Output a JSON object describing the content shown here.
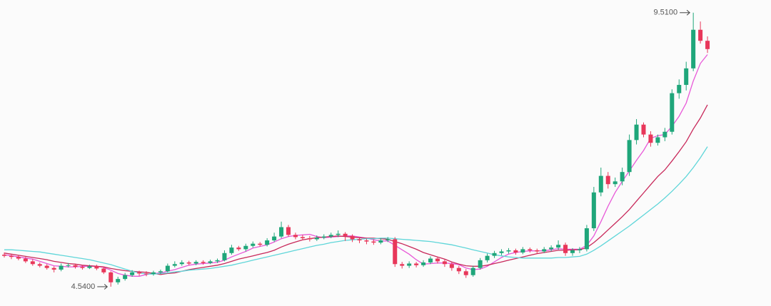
{
  "chart_data": {
    "type": "candlestick",
    "up_color": "#1fa67a",
    "down_color": "#e8375a",
    "ylim": [
      4.19,
      9.74
    ],
    "open": [
      5.12,
      5.1,
      5.08,
      5.05,
      5.0,
      4.95,
      4.92,
      4.88,
      4.85,
      4.92,
      4.93,
      4.9,
      4.88,
      4.91,
      4.87,
      4.8,
      4.62,
      4.68,
      4.75,
      4.8,
      4.78,
      4.77,
      4.8,
      4.82,
      4.92,
      4.95,
      4.98,
      4.96,
      4.99,
      4.97,
      5.0,
      5.02,
      5.15,
      5.25,
      5.22,
      5.28,
      5.32,
      5.3,
      5.38,
      5.45,
      5.62,
      5.48,
      5.44,
      5.42,
      5.4,
      5.43,
      5.45,
      5.48,
      5.5,
      5.46,
      5.4,
      5.38,
      5.36,
      5.34,
      5.38,
      5.4,
      4.95,
      4.92,
      4.96,
      4.93,
      4.98,
      5.05,
      5.0,
      4.95,
      4.88,
      4.82,
      4.75,
      4.88,
      5.02,
      5.1,
      5.15,
      5.18,
      5.2,
      5.16,
      5.22,
      5.2,
      5.18,
      5.22,
      5.25,
      5.3,
      5.15,
      5.2,
      5.22,
      5.6,
      6.25,
      6.55,
      6.4,
      6.45,
      6.62,
      7.2,
      7.48,
      7.3,
      7.15,
      7.25,
      7.35,
      8.05,
      8.2,
      8.5,
      9.2,
      9.0
    ],
    "high": [
      5.16,
      5.13,
      5.11,
      5.08,
      5.04,
      4.98,
      4.95,
      4.91,
      4.96,
      4.97,
      4.96,
      4.93,
      4.94,
      4.94,
      4.9,
      4.82,
      4.72,
      4.79,
      4.84,
      4.83,
      4.82,
      4.83,
      4.85,
      4.96,
      5.0,
      5.02,
      5.01,
      5.02,
      5.02,
      5.03,
      5.05,
      5.2,
      5.3,
      5.28,
      5.32,
      5.36,
      5.35,
      5.42,
      5.52,
      5.72,
      5.66,
      5.52,
      5.48,
      5.46,
      5.47,
      5.49,
      5.52,
      5.56,
      5.53,
      5.49,
      5.43,
      5.41,
      5.4,
      5.42,
      5.44,
      5.44,
      4.99,
      5.0,
      4.99,
      5.02,
      5.09,
      5.08,
      5.03,
      4.98,
      4.92,
      4.86,
      4.92,
      5.06,
      5.14,
      5.19,
      5.22,
      5.24,
      5.23,
      5.26,
      5.25,
      5.23,
      5.26,
      5.29,
      5.38,
      5.34,
      5.24,
      5.26,
      5.66,
      6.35,
      6.7,
      6.62,
      6.52,
      6.7,
      7.3,
      7.58,
      7.52,
      7.36,
      7.3,
      7.42,
      8.12,
      8.3,
      8.62,
      9.51,
      9.35,
      9.08
    ],
    "low": [
      5.07,
      5.04,
      5.02,
      4.97,
      4.92,
      4.89,
      4.85,
      4.8,
      4.82,
      4.89,
      4.87,
      4.85,
      4.86,
      4.84,
      4.77,
      4.54,
      4.58,
      4.65,
      4.72,
      4.74,
      4.73,
      4.74,
      4.77,
      4.8,
      4.89,
      4.92,
      4.93,
      4.93,
      4.94,
      4.95,
      4.97,
      5.0,
      5.12,
      5.19,
      5.18,
      5.25,
      5.27,
      5.27,
      5.35,
      5.42,
      5.45,
      5.4,
      5.38,
      5.36,
      5.37,
      5.4,
      5.42,
      5.44,
      5.37,
      5.35,
      5.33,
      5.31,
      5.3,
      5.31,
      5.35,
      4.9,
      4.87,
      4.88,
      4.89,
      4.9,
      4.95,
      4.96,
      4.9,
      4.83,
      4.77,
      4.7,
      4.72,
      4.85,
      4.98,
      5.06,
      5.11,
      5.14,
      5.12,
      5.13,
      5.16,
      5.14,
      5.15,
      5.18,
      5.21,
      5.1,
      5.1,
      5.15,
      5.18,
      5.55,
      6.18,
      6.32,
      6.35,
      6.38,
      6.55,
      7.12,
      7.25,
      7.08,
      7.1,
      7.18,
      7.3,
      7.95,
      8.1,
      8.45,
      8.95,
      8.78
    ],
    "close": [
      5.1,
      5.08,
      5.05,
      5.0,
      4.95,
      4.92,
      4.88,
      4.85,
      4.92,
      4.93,
      4.9,
      4.88,
      4.91,
      4.87,
      4.8,
      4.62,
      4.68,
      4.75,
      4.8,
      4.78,
      4.77,
      4.8,
      4.82,
      4.92,
      4.95,
      4.98,
      4.96,
      4.99,
      4.97,
      5.0,
      5.02,
      5.15,
      5.25,
      5.22,
      5.28,
      5.32,
      5.3,
      5.38,
      5.45,
      5.62,
      5.48,
      5.44,
      5.42,
      5.4,
      5.43,
      5.45,
      5.48,
      5.5,
      5.46,
      5.4,
      5.38,
      5.36,
      5.34,
      5.38,
      5.4,
      4.95,
      4.92,
      4.96,
      4.93,
      4.98,
      5.05,
      5.0,
      4.95,
      4.88,
      4.82,
      4.75,
      4.88,
      5.02,
      5.1,
      5.15,
      5.18,
      5.2,
      5.16,
      5.22,
      5.2,
      5.18,
      5.22,
      5.25,
      5.3,
      5.15,
      5.2,
      5.22,
      5.6,
      6.25,
      6.55,
      6.4,
      6.45,
      6.62,
      7.2,
      7.48,
      7.3,
      7.15,
      7.25,
      7.35,
      8.05,
      8.2,
      8.5,
      9.2,
      9.0,
      8.85
    ],
    "series": [
      {
        "color": "#e858d8",
        "values": [
          5.12,
          5.1,
          5.08,
          5.06,
          5.04,
          5.0,
          4.96,
          4.92,
          4.91,
          4.9,
          4.9,
          4.91,
          4.91,
          4.91,
          4.89,
          4.84,
          4.78,
          4.75,
          4.73,
          4.73,
          4.76,
          4.78,
          4.79,
          4.82,
          4.85,
          4.89,
          4.93,
          4.95,
          4.96,
          4.97,
          4.98,
          5.02,
          5.08,
          5.13,
          5.18,
          5.24,
          5.27,
          5.3,
          5.35,
          5.41,
          5.45,
          5.47,
          5.48,
          5.49,
          5.45,
          5.43,
          5.44,
          5.45,
          5.46,
          5.46,
          5.44,
          5.42,
          5.39,
          5.37,
          5.37,
          5.29,
          5.21,
          5.13,
          5.03,
          4.95,
          4.96,
          4.97,
          4.97,
          4.96,
          4.94,
          4.88,
          4.85,
          4.86,
          4.91,
          4.99,
          5.07,
          5.13,
          5.16,
          5.18,
          5.19,
          5.19,
          5.19,
          5.21,
          5.23,
          5.22,
          5.22,
          5.22,
          5.29,
          5.46,
          5.72,
          6.0,
          6.25,
          6.45,
          6.64,
          6.83,
          7.01,
          7.23,
          7.28,
          7.3,
          7.45,
          7.63,
          7.87,
          8.27,
          8.59,
          8.75
        ]
      },
      {
        "color": "#c8285a",
        "values": [
          5.15,
          5.13,
          5.11,
          5.09,
          5.07,
          5.05,
          5.03,
          5.0,
          4.98,
          4.96,
          4.95,
          4.93,
          4.92,
          4.91,
          4.9,
          4.87,
          4.85,
          4.83,
          4.82,
          4.81,
          4.8,
          4.78,
          4.76,
          4.78,
          4.79,
          4.82,
          4.85,
          4.87,
          4.89,
          4.91,
          4.93,
          4.96,
          5.0,
          5.04,
          5.07,
          5.1,
          5.13,
          5.16,
          5.2,
          5.26,
          5.31,
          5.35,
          5.39,
          5.41,
          5.43,
          5.44,
          5.45,
          5.46,
          5.45,
          5.44,
          5.43,
          5.42,
          5.42,
          5.41,
          5.4,
          5.36,
          5.32,
          5.27,
          5.22,
          5.16,
          5.12,
          5.08,
          5.04,
          4.99,
          4.95,
          4.92,
          4.91,
          4.91,
          4.93,
          4.96,
          4.99,
          5.02,
          5.05,
          5.08,
          5.11,
          5.14,
          5.16,
          5.18,
          5.2,
          5.2,
          5.21,
          5.21,
          5.25,
          5.34,
          5.45,
          5.57,
          5.69,
          5.81,
          5.94,
          6.09,
          6.24,
          6.39,
          6.54,
          6.66,
          6.82,
          6.99,
          7.17,
          7.4,
          7.6,
          7.84
        ]
      },
      {
        "color": "#5fd6d9",
        "values": [
          5.21,
          5.21,
          5.2,
          5.19,
          5.18,
          5.17,
          5.15,
          5.13,
          5.11,
          5.09,
          5.07,
          5.05,
          5.03,
          5.0,
          4.97,
          4.94,
          4.9,
          4.86,
          4.82,
          4.79,
          4.77,
          4.77,
          4.78,
          4.79,
          4.81,
          4.82,
          4.84,
          4.85,
          4.86,
          4.87,
          4.89,
          4.91,
          4.93,
          4.96,
          4.99,
          5.02,
          5.05,
          5.08,
          5.11,
          5.14,
          5.17,
          5.2,
          5.23,
          5.26,
          5.29,
          5.31,
          5.34,
          5.36,
          5.38,
          5.39,
          5.4,
          5.41,
          5.41,
          5.42,
          5.42,
          5.41,
          5.4,
          5.39,
          5.38,
          5.37,
          5.36,
          5.34,
          5.32,
          5.3,
          5.27,
          5.24,
          5.21,
          5.18,
          5.15,
          5.12,
          5.1,
          5.08,
          5.07,
          5.06,
          5.06,
          5.06,
          5.06,
          5.06,
          5.07,
          5.07,
          5.08,
          5.09,
          5.13,
          5.2,
          5.28,
          5.37,
          5.46,
          5.55,
          5.64,
          5.74,
          5.84,
          5.94,
          6.04,
          6.15,
          6.27,
          6.4,
          6.54,
          6.7,
          6.88,
          7.08
        ]
      }
    ],
    "annotations": [
      {
        "label": "9.5100",
        "value": 9.51,
        "at": "high"
      },
      {
        "label": "4.5400",
        "value": 4.54,
        "at": "low"
      }
    ]
  }
}
